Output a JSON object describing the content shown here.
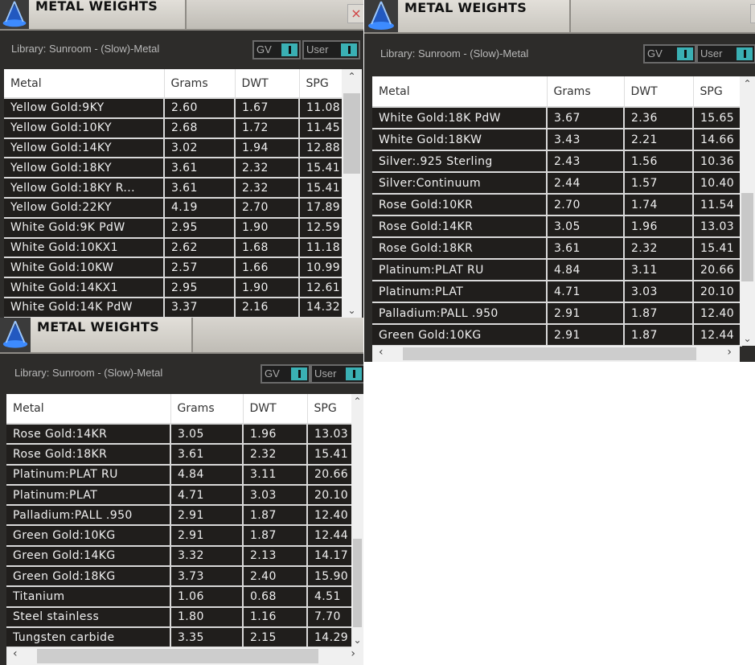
{
  "panels": [
    {
      "title": "METAL WEIGHTS",
      "library": "Library: Sunroom - (Slow)-Metal",
      "toggles": [
        "GV",
        "User"
      ],
      "close": "×",
      "columns": [
        "Metal",
        "Grams",
        "DWT",
        "SPG"
      ],
      "rows": [
        [
          "Yellow Gold:9KY",
          "2.60",
          "1.67",
          "11.08"
        ],
        [
          "Yellow Gold:10KY",
          "2.68",
          "1.72",
          "11.45"
        ],
        [
          "Yellow Gold:14KY",
          "3.02",
          "1.94",
          "12.88"
        ],
        [
          "Yellow Gold:18KY",
          "3.61",
          "2.32",
          "15.41"
        ],
        [
          "Yellow Gold:18KY R...",
          "3.61",
          "2.32",
          "15.41"
        ],
        [
          "Yellow Gold:22KY",
          "4.19",
          "2.70",
          "17.89"
        ],
        [
          "White Gold:9K PdW",
          "2.95",
          "1.90",
          "12.59"
        ],
        [
          "White Gold:10KX1",
          "2.62",
          "1.68",
          "11.18"
        ],
        [
          "White Gold:10KW",
          "2.57",
          "1.66",
          "10.99"
        ],
        [
          "White Gold:14KX1",
          "2.95",
          "1.90",
          "12.61"
        ],
        [
          "White Gold:14K PdW",
          "3.37",
          "2.16",
          "14.32"
        ]
      ]
    },
    {
      "title": "METAL WEIGHTS",
      "library": "Library: Sunroom - (Slow)-Metal",
      "toggles": [
        "GV",
        "User"
      ],
      "close": "×",
      "columns": [
        "Metal",
        "Grams",
        "DWT",
        "SPG"
      ],
      "rows": [
        [
          "White Gold:18K PdW",
          "3.67",
          "2.36",
          "15.65"
        ],
        [
          "White Gold:18KW",
          "3.43",
          "2.21",
          "14.66"
        ],
        [
          "Silver:.925 Sterling",
          "2.43",
          "1.56",
          "10.36"
        ],
        [
          "Silver:Continuum",
          "2.44",
          "1.57",
          "10.40"
        ],
        [
          "Rose Gold:10KR",
          "2.70",
          "1.74",
          "11.54"
        ],
        [
          "Rose Gold:14KR",
          "3.05",
          "1.96",
          "13.03"
        ],
        [
          "Rose Gold:18KR",
          "3.61",
          "2.32",
          "15.41"
        ],
        [
          "Platinum:PLAT RU",
          "4.84",
          "3.11",
          "20.66"
        ],
        [
          "Platinum:PLAT",
          "4.71",
          "3.03",
          "20.10"
        ],
        [
          "Palladium:PALL .950",
          "2.91",
          "1.87",
          "12.40"
        ],
        [
          "Green Gold:10KG",
          "2.91",
          "1.87",
          "12.44"
        ]
      ]
    },
    {
      "title": "METAL WEIGHTS",
      "library": "Library: Sunroom - (Slow)-Metal",
      "toggles": [
        "GV",
        "User"
      ],
      "columns": [
        "Metal",
        "Grams",
        "DWT",
        "SPG"
      ],
      "rows": [
        [
          "Rose Gold:14KR",
          "3.05",
          "1.96",
          "13.03"
        ],
        [
          "Rose Gold:18KR",
          "3.61",
          "2.32",
          "15.41"
        ],
        [
          "Platinum:PLAT RU",
          "4.84",
          "3.11",
          "20.66"
        ],
        [
          "Platinum:PLAT",
          "4.71",
          "3.03",
          "20.10"
        ],
        [
          "Palladium:PALL .950",
          "2.91",
          "1.87",
          "12.40"
        ],
        [
          "Green Gold:10KG",
          "2.91",
          "1.87",
          "12.44"
        ],
        [
          "Green Gold:14KG",
          "3.32",
          "2.13",
          "14.17"
        ],
        [
          "Green Gold:18KG",
          "3.73",
          "2.40",
          "15.90"
        ],
        [
          "Titanium",
          "1.06",
          "0.68",
          "4.51"
        ],
        [
          "Steel stainless",
          "1.80",
          "1.16",
          "7.70"
        ],
        [
          "Tungsten carbide",
          "3.35",
          "2.15",
          "14.29"
        ]
      ]
    }
  ],
  "colors": {
    "toggle_on": "#3ab0b4",
    "row_bg": "#201e1c",
    "panel_bg": "#2d2c2a"
  }
}
